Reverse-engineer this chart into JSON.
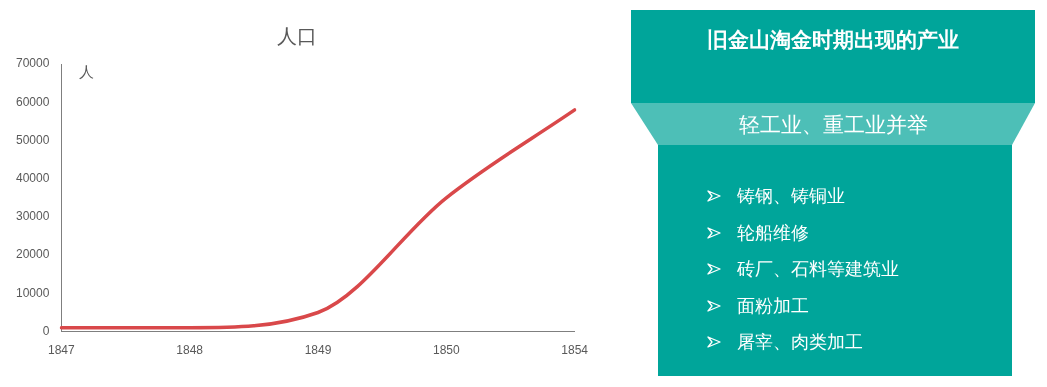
{
  "chart_data": [
    {
      "type": "line",
      "title": "人口",
      "ylabel": "人",
      "categories": [
        "1847",
        "1848",
        "1849",
        "1850",
        "1854"
      ],
      "series": [
        {
          "color": "#d9484a",
          "values": [
            1000,
            1000,
            5000,
            35000,
            58000
          ]
        }
      ],
      "ylim": [
        0,
        70000
      ],
      "yticks": [
        0,
        10000,
        20000,
        30000,
        40000,
        50000,
        60000,
        70000
      ],
      "grid": false
    },
    {
      "type": "other",
      "title": "旧金山淘金时期出现的产业",
      "subtitle": "轻工业、重工业并举",
      "annotations": [
        "铸钢、铸铜业",
        "轮船维修",
        "砖厂、石料等建筑业",
        "面粉加工",
        "屠宰、肉类加工"
      ]
    }
  ]
}
